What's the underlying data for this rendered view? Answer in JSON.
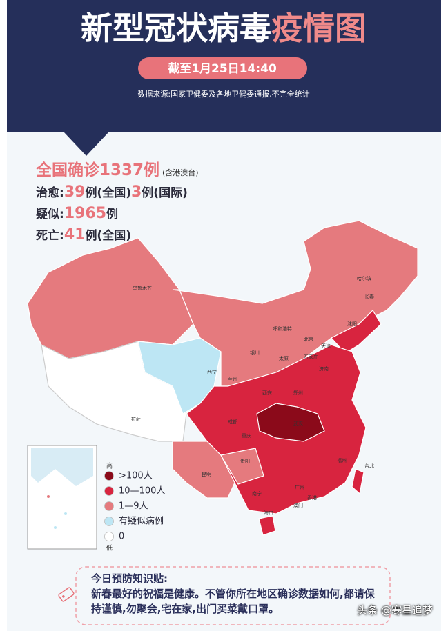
{
  "header": {
    "title_main": "新型冠状病毒",
    "title_highlight": "疫情图",
    "date": "截至1月25日14:40",
    "source": "数据来源:国家卫健委及各地卫健委通报,不完全统计"
  },
  "stats": {
    "confirmed": {
      "label": "全国确诊",
      "value": 1337,
      "unit": "例",
      "note": "(含港澳台)"
    },
    "cured": {
      "label": "治愈:",
      "national": 39,
      "national_unit": "例(全国)",
      "international": 3,
      "international_unit": "例(国际)"
    },
    "suspected": {
      "label": "疑似:",
      "value": 1965,
      "unit": "例"
    },
    "deaths": {
      "label": "死亡:",
      "value": 41,
      "unit": "例(全国)"
    }
  },
  "legend": {
    "high": "高",
    "low": "低",
    "items": [
      {
        "label": ">100人",
        "color": "#8b0a1a"
      },
      {
        "label": "10—100人",
        "color": "#d8243f"
      },
      {
        "label": "1—9人",
        "color": "#e57a7e"
      },
      {
        "label": "有疑似病例",
        "color": "#bde6f4"
      },
      {
        "label": "0",
        "color": "#ffffff"
      }
    ]
  },
  "cities": [
    "乌鲁木齐",
    "拉萨",
    "西宁",
    "兰州",
    "银川",
    "呼和浩特",
    "北京",
    "天津",
    "石家庄",
    "太原",
    "哈尔滨",
    "长春",
    "沈阳",
    "济南",
    "西安",
    "郑州",
    "成都",
    "重庆",
    "武汉",
    "贵阳",
    "昆明",
    "南宁",
    "广州",
    "香港",
    "澳门",
    "海口",
    "福州",
    "台北"
  ],
  "tip": {
    "title": "今日预防知识贴:",
    "text": "新春最好的祝福是健康。不管你所在地区确诊数据如何,都请保持谨慎,勿聚会,宅在家,出门买菜戴口罩。"
  },
  "watermark": "头条 @寒星追梦"
}
